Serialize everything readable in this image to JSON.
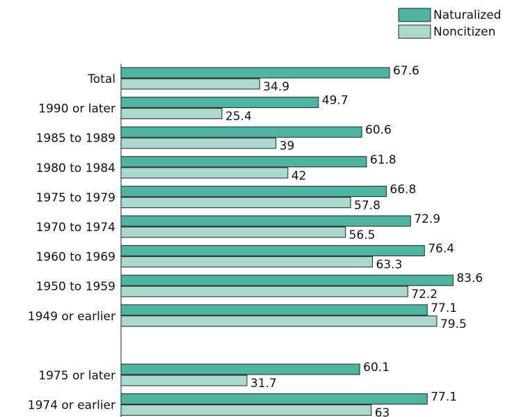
{
  "chart_data": {
    "type": "bar",
    "orientation": "horizontal",
    "categories": [
      "Total",
      "1990 or later",
      "1985 to 1989",
      "1980 to 1984",
      "1975 to 1979",
      "1970 to 1974",
      "1960 to 1969",
      "1950 to 1959",
      "1949 or earlier",
      null,
      "1975 or later",
      "1974 or earlier"
    ],
    "series": [
      {
        "name": "Naturalized",
        "color": "#4fb5a0",
        "values": [
          67.6,
          49.7,
          60.6,
          61.8,
          66.8,
          72.9,
          76.4,
          83.6,
          77.1,
          null,
          60.1,
          77.1
        ]
      },
      {
        "name": "Noncitizen",
        "color": "#a9dacd",
        "values": [
          34.9,
          25.4,
          39,
          42,
          57.8,
          56.5,
          63.3,
          72.2,
          79.5,
          null,
          31.7,
          63
        ]
      }
    ],
    "xlim": [
      0,
      100
    ],
    "legend": "top-right"
  }
}
